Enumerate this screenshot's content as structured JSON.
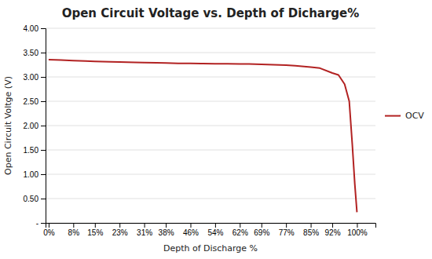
{
  "chart_data": {
    "type": "line",
    "title": "Open Circuit Voltage vs. Depth of Dicharge%",
    "xlabel": "Depth of Discharge %",
    "ylabel": "Open Circuit Voltge (V)",
    "x": [
      0.0,
      0.04,
      0.08,
      0.12,
      0.15,
      0.2,
      0.23,
      0.28,
      0.31,
      0.35,
      0.38,
      0.42,
      0.46,
      0.5,
      0.54,
      0.58,
      0.62,
      0.65,
      0.69,
      0.73,
      0.77,
      0.8,
      0.85,
      0.88,
      0.92,
      0.94,
      0.96,
      0.975,
      0.985,
      0.993,
      1.0
    ],
    "series": [
      {
        "name": "OCV",
        "color": "#b22222",
        "values": [
          3.355,
          3.345,
          3.335,
          3.325,
          3.318,
          3.31,
          3.305,
          3.3,
          3.295,
          3.29,
          3.285,
          3.28,
          3.278,
          3.275,
          3.272,
          3.27,
          3.268,
          3.265,
          3.26,
          3.25,
          3.24,
          3.228,
          3.2,
          3.18,
          3.08,
          3.04,
          2.85,
          2.5,
          1.6,
          0.8,
          0.22
        ]
      }
    ],
    "xlim": [
      -0.01,
      1.06
    ],
    "xticks": [
      {
        "value": 0.0,
        "label": "0%"
      },
      {
        "value": 0.08,
        "label": "8%"
      },
      {
        "value": 0.15,
        "label": "15%"
      },
      {
        "value": 0.23,
        "label": "23%"
      },
      {
        "value": 0.31,
        "label": "31%"
      },
      {
        "value": 0.38,
        "label": "38%"
      },
      {
        "value": 0.46,
        "label": "46%"
      },
      {
        "value": 0.54,
        "label": "54%"
      },
      {
        "value": 0.62,
        "label": "62%"
      },
      {
        "value": 0.69,
        "label": "69%"
      },
      {
        "value": 0.77,
        "label": "77%"
      },
      {
        "value": 0.85,
        "label": "85%"
      },
      {
        "value": 0.92,
        "label": "92%"
      },
      {
        "value": 1.0,
        "label": "100%"
      }
    ],
    "ylim": [
      0,
      4.0
    ],
    "yticks": [
      {
        "value": 0.0,
        "label": "-"
      },
      {
        "value": 0.5,
        "label": "0.50"
      },
      {
        "value": 1.0,
        "label": "1.00"
      },
      {
        "value": 1.5,
        "label": "1.50"
      },
      {
        "value": 2.0,
        "label": "2.00"
      },
      {
        "value": 2.5,
        "label": "2.50"
      },
      {
        "value": 3.0,
        "label": "3.00"
      },
      {
        "value": 3.5,
        "label": "3.50"
      },
      {
        "value": 4.0,
        "label": "4.00"
      }
    ],
    "grid": "y",
    "legend": "right"
  }
}
